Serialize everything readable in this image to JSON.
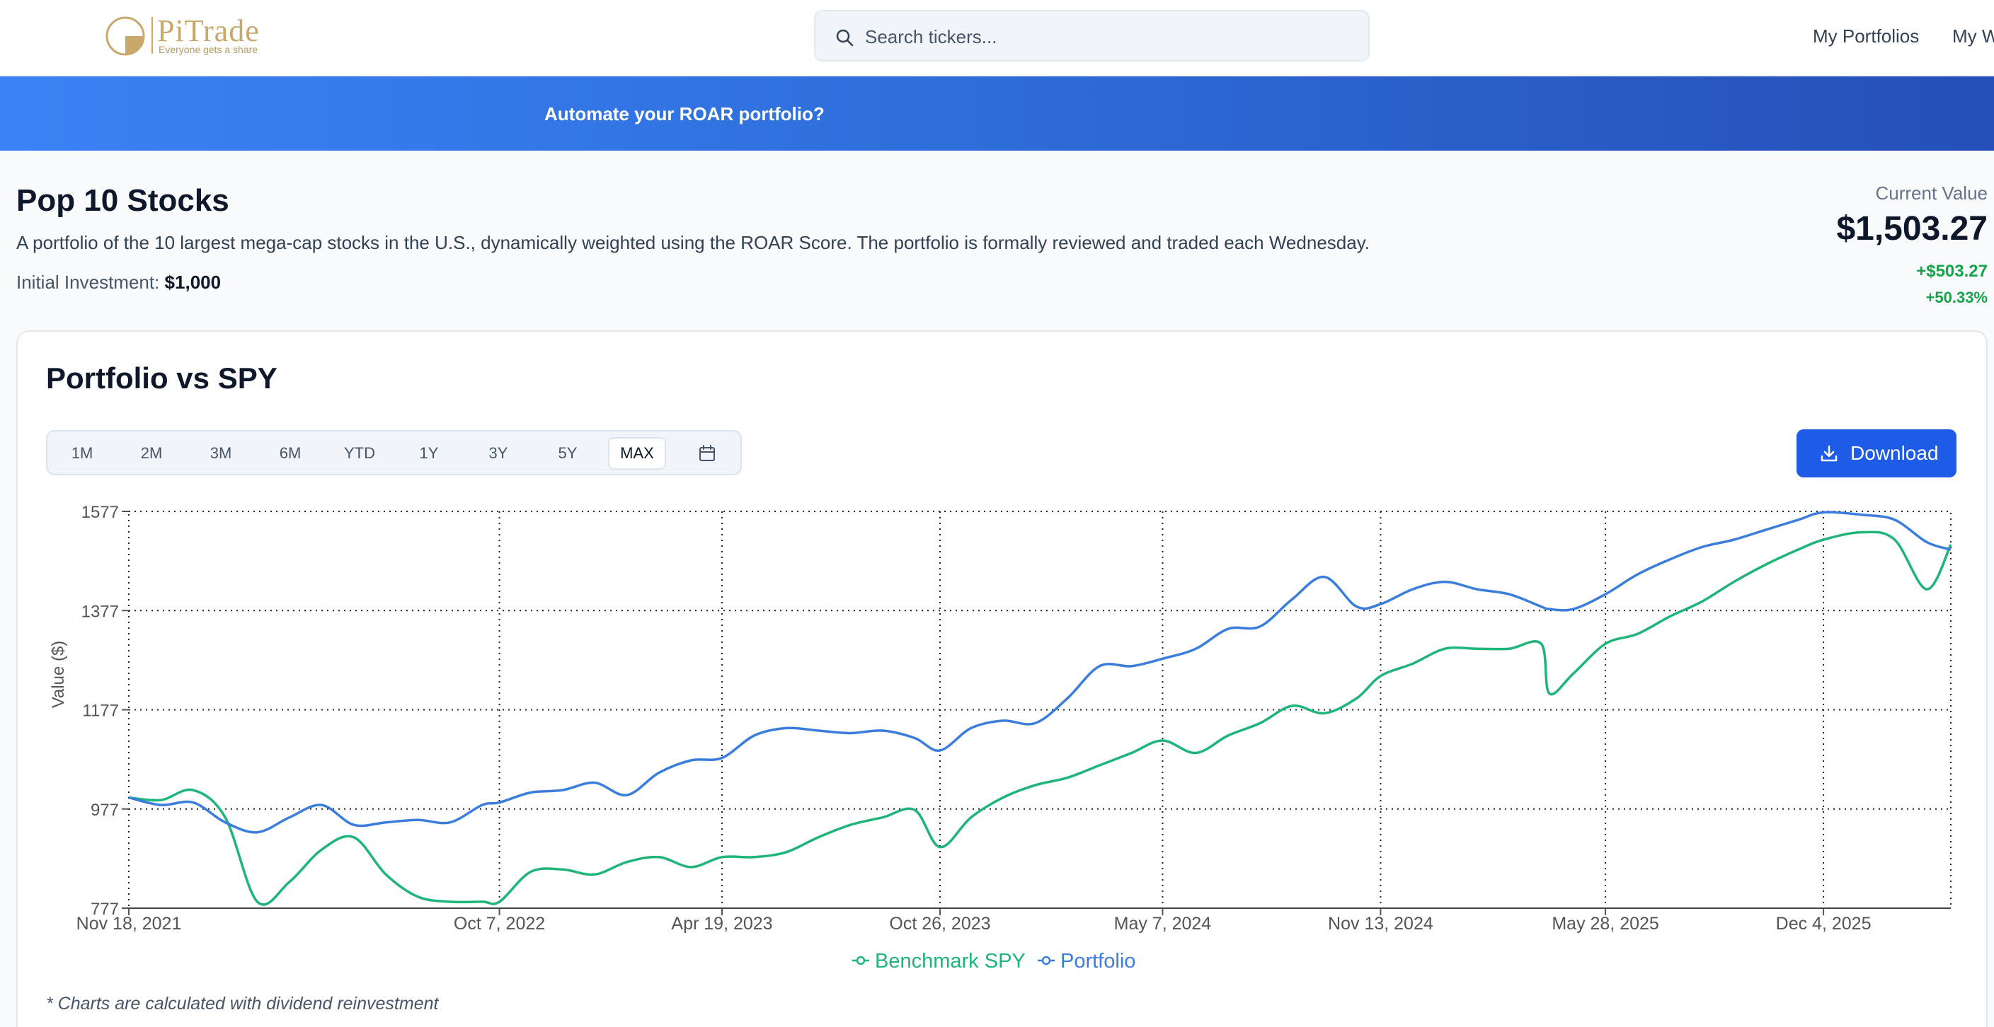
{
  "header": {
    "logo_name": "PiTrade",
    "logo_tagline": "Everyone gets a share",
    "search_placeholder": "Search tickers...",
    "nav": [
      "My Portfolios",
      "My W"
    ]
  },
  "banner": {
    "text": "Automate your ROAR portfolio?"
  },
  "portfolio": {
    "title": "Pop 10 Stocks",
    "description": "A portfolio of the 10 largest mega-cap stocks in the U.S., dynamically weighted using the ROAR Score. The portfolio is formally reviewed and traded each Wednesday.",
    "initial_label": "Initial Investment:",
    "initial_value": "$1,000",
    "current_label": "Current Value",
    "current_value": "$1,503.27",
    "change": "+$503.27",
    "change_pct": "+50.33%"
  },
  "chart_section": {
    "title": "Portfolio vs SPY",
    "ranges": [
      "1M",
      "2M",
      "3M",
      "6M",
      "YTD",
      "1Y",
      "3Y",
      "5Y",
      "MAX"
    ],
    "active_range": "MAX",
    "download_label": "Download",
    "footnote": "* Charts are calculated with dividend reinvestment"
  },
  "colors": {
    "portfolio": "#3b7ddd",
    "benchmark": "#1fb57a",
    "accent": "#1e5be6",
    "gain": "#16a34a"
  },
  "chart_data": {
    "type": "line",
    "title": "",
    "xlabel": "",
    "ylabel": "Value ($)",
    "yticks": [
      777,
      977,
      1177,
      1377,
      1577
    ],
    "ylim": [
      777,
      1577
    ],
    "xticks": [
      "Nov 18, 2021",
      "Oct 7, 2022",
      "Apr 19, 2023",
      "Oct 26, 2023",
      "May 7, 2024",
      "Nov 13, 2024",
      "May 28, 2025",
      "Dec 4, 2025"
    ],
    "grid": true,
    "legend": "bottom-center",
    "x": [
      "2021-11-18",
      "2021-12-16",
      "2022-01-13",
      "2022-02-10",
      "2022-03-10",
      "2022-04-07",
      "2022-05-05",
      "2022-06-02",
      "2022-06-30",
      "2022-07-28",
      "2022-08-25",
      "2022-09-22",
      "2022-10-07",
      "2022-11-03",
      "2022-12-01",
      "2022-12-29",
      "2023-01-26",
      "2023-02-23",
      "2023-03-23",
      "2023-04-19",
      "2023-05-17",
      "2023-06-14",
      "2023-07-12",
      "2023-08-09",
      "2023-09-06",
      "2023-10-04",
      "2023-10-26",
      "2023-11-22",
      "2023-12-20",
      "2024-01-17",
      "2024-02-14",
      "2024-03-13",
      "2024-04-10",
      "2024-05-07",
      "2024-06-05",
      "2024-07-03",
      "2024-07-31",
      "2024-08-28",
      "2024-09-25",
      "2024-10-23",
      "2024-11-13",
      "2024-12-11",
      "2025-01-08",
      "2025-02-05",
      "2025-03-05",
      "2025-04-02",
      "2025-04-09",
      "2025-04-30",
      "2025-05-28",
      "2025-06-25",
      "2025-07-23",
      "2025-08-20",
      "2025-09-17",
      "2025-10-15",
      "2025-11-12",
      "2025-12-04",
      "2026-01-07",
      "2026-02-04",
      "2026-03-04",
      "2026-03-25"
    ],
    "series": [
      {
        "name": "Benchmark SPY",
        "values": [
          1000,
          995,
          1015,
          960,
          790,
          830,
          895,
          920,
          845,
          800,
          790,
          790,
          790,
          850,
          855,
          845,
          870,
          880,
          860,
          880,
          880,
          890,
          920,
          945,
          960,
          975,
          900,
          960,
          1000,
          1025,
          1040,
          1065,
          1090,
          1115,
          1090,
          1125,
          1150,
          1185,
          1170,
          1200,
          1245,
          1270,
          1300,
          1300,
          1300,
          1310,
          1210,
          1250,
          1310,
          1330,
          1365,
          1395,
          1435,
          1470,
          1500,
          1520,
          1535,
          1520,
          1420,
          1510
        ]
      },
      {
        "name": "Portfolio",
        "values": [
          1000,
          985,
          990,
          950,
          930,
          960,
          985,
          945,
          950,
          955,
          950,
          985,
          990,
          1010,
          1015,
          1030,
          1005,
          1050,
          1075,
          1080,
          1125,
          1140,
          1135,
          1130,
          1135,
          1120,
          1095,
          1140,
          1155,
          1150,
          1200,
          1265,
          1265,
          1280,
          1300,
          1340,
          1345,
          1400,
          1445,
          1385,
          1390,
          1420,
          1435,
          1420,
          1410,
          1385,
          1380,
          1380,
          1410,
          1450,
          1480,
          1505,
          1520,
          1540,
          1560,
          1575,
          1570,
          1560,
          1515,
          1500
        ]
      }
    ]
  }
}
